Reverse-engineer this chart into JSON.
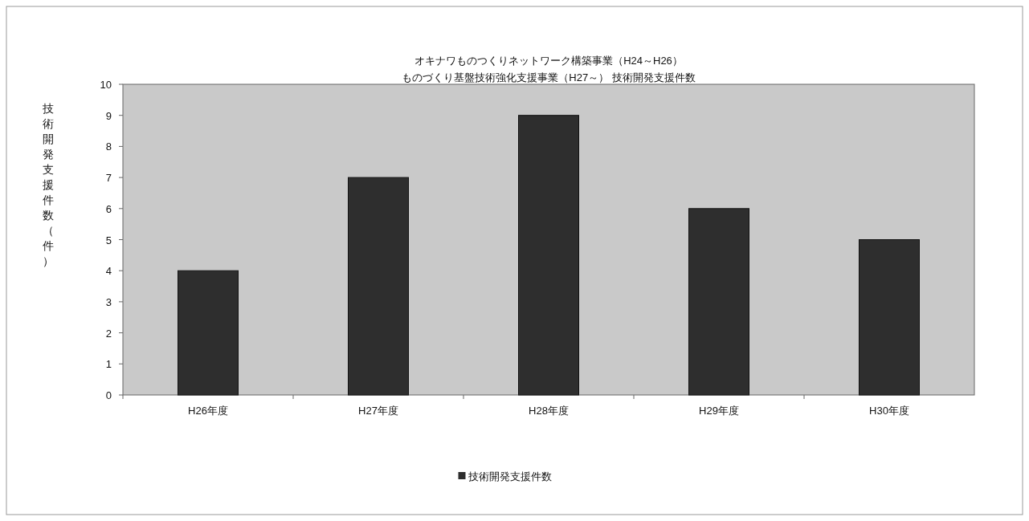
{
  "chart_data": {
    "type": "bar",
    "title": "オキナワものつくりネットワーク構築事業（H24～H26）",
    "subtitle": "ものづくり基盤技術強化支援事業（H27～）  技術開発支援件数",
    "ylabel": "技術開発支援件数（件）",
    "categories": [
      "H26年度",
      "H27年度",
      "H28年度",
      "H29年度",
      "H30年度"
    ],
    "series": [
      {
        "name": "技術開発支援件数",
        "color": "#2e2e2e",
        "values": [
          4,
          7,
          9,
          6,
          5
        ]
      }
    ],
    "ylim": [
      0,
      10
    ],
    "yticks": [
      0,
      1,
      2,
      3,
      4,
      5,
      6,
      7,
      8,
      9,
      10
    ],
    "legend": "bottom"
  }
}
